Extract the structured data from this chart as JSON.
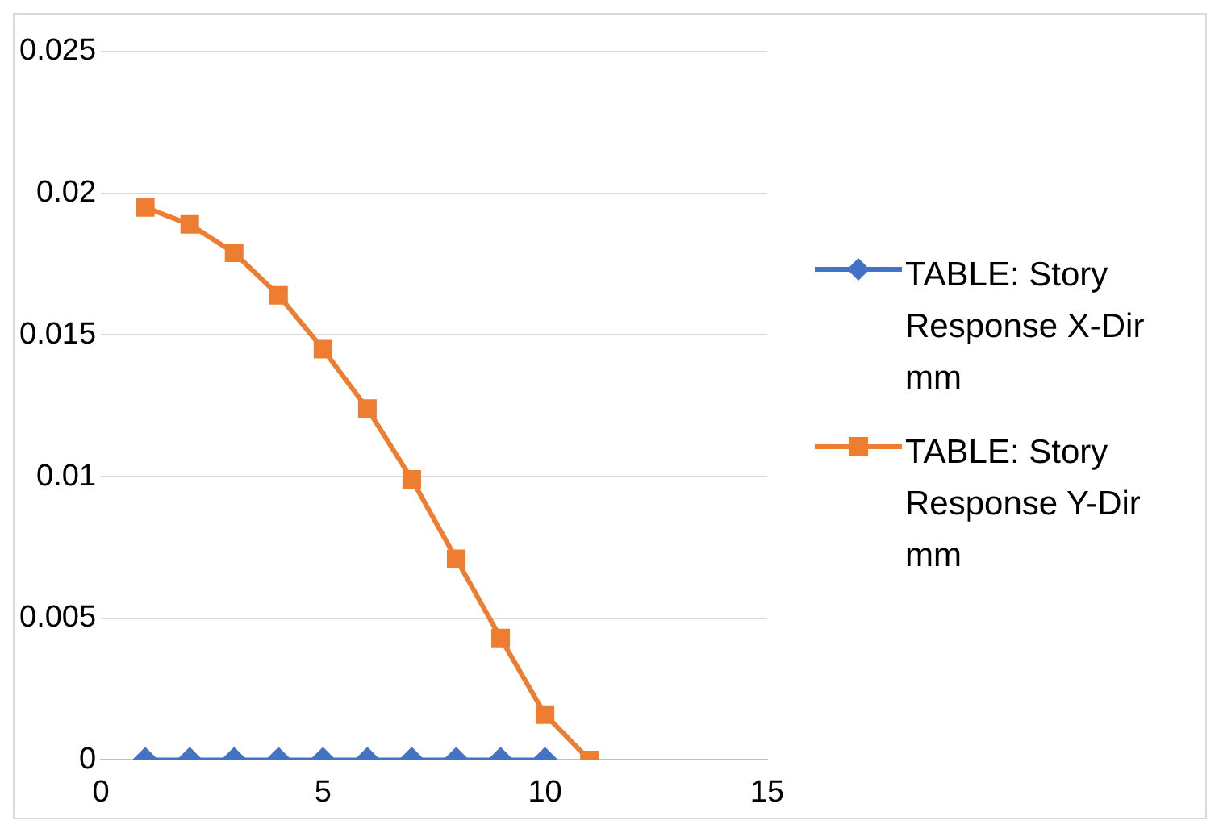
{
  "chart_data": {
    "type": "line",
    "x": [
      1,
      2,
      3,
      4,
      5,
      6,
      7,
      8,
      9,
      10,
      11
    ],
    "series": [
      {
        "name": "TABLE:  Story Response X-Dir mm",
        "color": "#4472c4",
        "marker": "diamond",
        "values": [
          0,
          0,
          0,
          0,
          0,
          0,
          0,
          0,
          0,
          0,
          null
        ]
      },
      {
        "name": "TABLE:  Story Response Y-Dir mm",
        "color": "#ed7d31",
        "marker": "square",
        "values": [
          0.0195,
          0.0189,
          0.0179,
          0.0164,
          0.0145,
          0.0124,
          0.0099,
          0.0071,
          0.0043,
          0.0016,
          0
        ]
      }
    ],
    "xlim": [
      0,
      15
    ],
    "xticks": [
      0,
      5,
      10,
      15
    ],
    "ylim": [
      0,
      0.025
    ],
    "yticks": [
      0,
      0.005,
      0.01,
      0.015,
      0.02,
      0.025
    ],
    "grid": "y",
    "legend": "right"
  }
}
